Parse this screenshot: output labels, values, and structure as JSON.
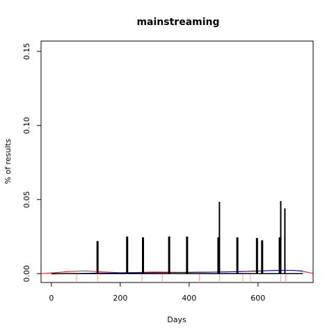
{
  "chart_data": {
    "type": "bar",
    "title": "mainstreaming",
    "xlabel": "Days",
    "ylabel": "% of results",
    "xlim": [
      -30,
      760
    ],
    "ylim": [
      -0.006,
      0.157
    ],
    "x_ticks": [
      0,
      200,
      400,
      600
    ],
    "y_ticks": [
      0.0,
      0.05,
      0.1,
      0.15
    ],
    "y_tick_labels": [
      "0.00",
      "0.05",
      "0.10",
      "0.15"
    ],
    "grid": false,
    "series": [
      {
        "kind": "spikes",
        "color": "#000000",
        "points": [
          {
            "x": 134,
            "y": 0.022
          },
          {
            "x": 220,
            "y": 0.025
          },
          {
            "x": 266,
            "y": 0.0245
          },
          {
            "x": 342,
            "y": 0.025
          },
          {
            "x": 394,
            "y": 0.025
          },
          {
            "x": 485,
            "y": 0.0245
          },
          {
            "x": 488,
            "y": 0.0485
          },
          {
            "x": 540,
            "y": 0.0245
          },
          {
            "x": 597,
            "y": 0.024
          },
          {
            "x": 612,
            "y": 0.0225
          },
          {
            "x": 663,
            "y": 0.0245
          },
          {
            "x": 666,
            "y": 0.049
          },
          {
            "x": 678,
            "y": 0.044
          }
        ]
      },
      {
        "kind": "rug",
        "color": "#ff9999",
        "x": [
          73,
          134,
          263,
          322,
          430,
          488,
          556,
          578,
          666,
          680
        ]
      },
      {
        "kind": "smooth",
        "color": "#ff0000",
        "x": [
          -30,
          0,
          50,
          100,
          150,
          200,
          250,
          300,
          350,
          400,
          450,
          500,
          550,
          600,
          650,
          700,
          730,
          760
        ],
        "y": [
          0.0,
          0.0005,
          0.0014,
          0.0018,
          0.0012,
          0.0006,
          0.0008,
          0.0011,
          0.0009,
          0.0008,
          0.0009,
          0.0011,
          0.0014,
          0.0017,
          0.0021,
          0.0022,
          0.0015,
          0.0002
        ]
      },
      {
        "kind": "smooth",
        "color": "#0000cc",
        "x": [
          0,
          50,
          100,
          150,
          200,
          250,
          300,
          350,
          400,
          450,
          500,
          550,
          600,
          650,
          700,
          730
        ],
        "y": [
          -0.0002,
          0.0,
          0.0002,
          0.0004,
          0.0005,
          0.0006,
          0.0007,
          0.0008,
          0.0009,
          0.001,
          0.0012,
          0.0014,
          0.0018,
          0.0022,
          0.0022,
          0.0018
        ]
      },
      {
        "kind": "baseline",
        "color": "#000000",
        "x": [
          0,
          730
        ],
        "y": [
          0.0,
          0.0
        ]
      }
    ]
  }
}
